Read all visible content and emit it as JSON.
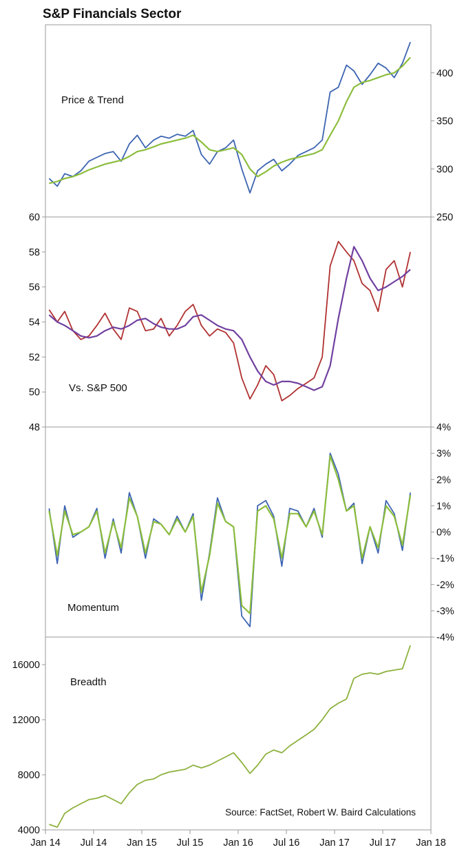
{
  "title": "S&P Financials Sector",
  "source": "Source: FactSet, Robert W. Baird Calculations",
  "colors": {
    "price": "#3c64b1",
    "price_trend": "#8cbd3c",
    "rel": "#b03030",
    "rel_trend": "#7040a0",
    "mom": "#3c64b1",
    "mom_trend": "#8cbd3c",
    "breadth": "#8cb13c",
    "frame": "#999999"
  },
  "x_axis": {
    "ticks": [
      "Jan 14",
      "Jul 14",
      "Jan 15",
      "Jul 15",
      "Jan 16",
      "Jul 16",
      "Jan 17",
      "Jul 17",
      "Jan 18"
    ],
    "range": [
      "2014-01-01",
      "2018-01-01"
    ]
  },
  "chart_data": [
    {
      "type": "line",
      "label": "Price & Trend",
      "y_axis_side": "right",
      "ylim": [
        250,
        450
      ],
      "yticks": [
        "250",
        "300",
        "350",
        "400"
      ],
      "x": [
        "2014-01",
        "2014-02",
        "2014-03",
        "2014-04",
        "2014-05",
        "2014-06",
        "2014-07",
        "2014-08",
        "2014-09",
        "2014-10",
        "2014-11",
        "2014-12",
        "2015-01",
        "2015-02",
        "2015-03",
        "2015-04",
        "2015-05",
        "2015-06",
        "2015-07",
        "2015-08",
        "2015-09",
        "2015-10",
        "2015-11",
        "2015-12",
        "2016-01",
        "2016-02",
        "2016-03",
        "2016-04",
        "2016-05",
        "2016-06",
        "2016-07",
        "2016-08",
        "2016-09",
        "2016-10",
        "2016-11",
        "2016-12",
        "2017-01",
        "2017-02",
        "2017-03",
        "2017-04",
        "2017-05",
        "2017-06",
        "2017-07",
        "2017-08",
        "2017-09",
        "2017-10"
      ],
      "series": [
        {
          "name": "",
          "role": "price",
          "values": [
            290,
            282,
            295,
            292,
            298,
            308,
            312,
            316,
            318,
            308,
            326,
            335,
            322,
            330,
            334,
            332,
            336,
            334,
            340,
            315,
            305,
            318,
            322,
            330,
            300,
            275,
            298,
            305,
            310,
            298,
            305,
            314,
            318,
            322,
            330,
            380,
            385,
            408,
            402,
            388,
            398,
            410,
            405,
            395,
            410,
            432
          ]
        },
        {
          "name": "",
          "role": "trend",
          "values": [
            285,
            287,
            290,
            292,
            295,
            299,
            302,
            305,
            307,
            309,
            313,
            318,
            320,
            323,
            326,
            328,
            330,
            332,
            335,
            328,
            320,
            318,
            320,
            322,
            315,
            300,
            292,
            297,
            303,
            307,
            310,
            312,
            314,
            316,
            320,
            335,
            350,
            370,
            385,
            390,
            392,
            395,
            398,
            400,
            407,
            416
          ]
        }
      ]
    },
    {
      "type": "line",
      "label": "Vs. S&P 500",
      "y_axis_side": "left",
      "ylim": [
        48,
        60
      ],
      "yticks": [
        "48",
        "50",
        "52",
        "54",
        "56",
        "58",
        "60"
      ],
      "x": [
        "2014-01",
        "2014-02",
        "2014-03",
        "2014-04",
        "2014-05",
        "2014-06",
        "2014-07",
        "2014-08",
        "2014-09",
        "2014-10",
        "2014-11",
        "2014-12",
        "2015-01",
        "2015-02",
        "2015-03",
        "2015-04",
        "2015-05",
        "2015-06",
        "2015-07",
        "2015-08",
        "2015-09",
        "2015-10",
        "2015-11",
        "2015-12",
        "2016-01",
        "2016-02",
        "2016-03",
        "2016-04",
        "2016-05",
        "2016-06",
        "2016-07",
        "2016-08",
        "2016-09",
        "2016-10",
        "2016-11",
        "2016-12",
        "2017-01",
        "2017-02",
        "2017-03",
        "2017-04",
        "2017-05",
        "2017-06",
        "2017-07",
        "2017-08",
        "2017-09",
        "2017-10"
      ],
      "series": [
        {
          "name": "",
          "role": "rel",
          "values": [
            54.7,
            54.0,
            54.6,
            53.5,
            53.0,
            53.2,
            53.8,
            54.5,
            53.6,
            53.0,
            54.8,
            54.6,
            53.5,
            53.6,
            54.2,
            53.2,
            53.8,
            54.6,
            55.0,
            53.8,
            53.2,
            53.6,
            53.4,
            52.8,
            50.8,
            49.6,
            50.4,
            51.5,
            51.0,
            49.5,
            49.8,
            50.2,
            50.5,
            50.8,
            52.0,
            57.2,
            58.6,
            58.0,
            57.5,
            56.2,
            55.8,
            54.6,
            57.0,
            57.5,
            56.0,
            58.0
          ]
        },
        {
          "name": "",
          "role": "trend",
          "values": [
            54.4,
            54.0,
            53.8,
            53.5,
            53.2,
            53.1,
            53.2,
            53.5,
            53.7,
            53.6,
            53.8,
            54.1,
            54.2,
            53.9,
            53.7,
            53.6,
            53.6,
            53.8,
            54.3,
            54.4,
            54.1,
            53.8,
            53.6,
            53.5,
            53.0,
            52.0,
            51.2,
            50.6,
            50.4,
            50.6,
            50.6,
            50.5,
            50.3,
            50.1,
            50.3,
            51.5,
            54.2,
            56.5,
            58.3,
            57.5,
            56.5,
            55.8,
            56.0,
            56.3,
            56.6,
            57.0
          ]
        }
      ]
    },
    {
      "type": "line",
      "label": "Momentum",
      "y_axis_side": "right",
      "ylim": [
        -4,
        4
      ],
      "yticks": [
        "-4%",
        "-3%",
        "-2%",
        "-1%",
        "0%",
        "1%",
        "2%",
        "3%",
        "4%"
      ],
      "x": [
        "2014-01",
        "2014-02",
        "2014-03",
        "2014-04",
        "2014-05",
        "2014-06",
        "2014-07",
        "2014-08",
        "2014-09",
        "2014-10",
        "2014-11",
        "2014-12",
        "2015-01",
        "2015-02",
        "2015-03",
        "2015-04",
        "2015-05",
        "2015-06",
        "2015-07",
        "2015-08",
        "2015-09",
        "2015-10",
        "2015-11",
        "2015-12",
        "2016-01",
        "2016-02",
        "2016-03",
        "2016-04",
        "2016-05",
        "2016-06",
        "2016-07",
        "2016-08",
        "2016-09",
        "2016-10",
        "2016-11",
        "2016-12",
        "2017-01",
        "2017-02",
        "2017-03",
        "2017-04",
        "2017-05",
        "2017-06",
        "2017-07",
        "2017-08",
        "2017-09",
        "2017-10"
      ],
      "series": [
        {
          "name": "",
          "role": "mom",
          "values": [
            0.9,
            -1.2,
            1.0,
            -0.2,
            0.0,
            0.2,
            0.9,
            -1.0,
            0.5,
            -0.8,
            1.5,
            0.6,
            -1.0,
            0.5,
            0.3,
            -0.1,
            0.6,
            0.0,
            0.7,
            -2.6,
            -0.8,
            1.3,
            0.4,
            0.2,
            -3.2,
            -3.6,
            1.0,
            1.2,
            0.6,
            -1.3,
            0.9,
            0.8,
            0.2,
            0.9,
            -0.2,
            3.0,
            2.2,
            0.8,
            1.1,
            -1.2,
            0.2,
            -0.8,
            1.2,
            0.7,
            -0.7,
            1.5
          ]
        },
        {
          "name": "",
          "role": "trend",
          "values": [
            0.8,
            -0.9,
            0.8,
            -0.1,
            0.0,
            0.2,
            0.8,
            -0.8,
            0.4,
            -0.6,
            1.3,
            0.6,
            -0.8,
            0.4,
            0.3,
            -0.1,
            0.5,
            0.0,
            0.6,
            -2.3,
            -0.9,
            1.1,
            0.4,
            0.2,
            -2.8,
            -3.1,
            0.8,
            1.0,
            0.5,
            -1.0,
            0.7,
            0.7,
            0.2,
            0.8,
            -0.1,
            2.9,
            2.0,
            0.8,
            1.0,
            -1.0,
            0.2,
            -0.6,
            1.0,
            0.6,
            -0.5,
            1.4
          ]
        }
      ]
    },
    {
      "type": "line",
      "label": "Breadth",
      "y_axis_side": "left",
      "ylim": [
        4000,
        18000
      ],
      "yticks": [
        "4000",
        "8000",
        "12000",
        "16000"
      ],
      "x": [
        "2014-01",
        "2014-02",
        "2014-03",
        "2014-04",
        "2014-05",
        "2014-06",
        "2014-07",
        "2014-08",
        "2014-09",
        "2014-10",
        "2014-11",
        "2014-12",
        "2015-01",
        "2015-02",
        "2015-03",
        "2015-04",
        "2015-05",
        "2015-06",
        "2015-07",
        "2015-08",
        "2015-09",
        "2015-10",
        "2015-11",
        "2015-12",
        "2016-01",
        "2016-02",
        "2016-03",
        "2016-04",
        "2016-05",
        "2016-06",
        "2016-07",
        "2016-08",
        "2016-09",
        "2016-10",
        "2016-11",
        "2016-12",
        "2017-01",
        "2017-02",
        "2017-03",
        "2017-04",
        "2017-05",
        "2017-06",
        "2017-07",
        "2017-08",
        "2017-09",
        "2017-10"
      ],
      "series": [
        {
          "name": "",
          "role": "breadth",
          "values": [
            4400,
            4200,
            5200,
            5600,
            5900,
            6200,
            6300,
            6500,
            6200,
            5900,
            6700,
            7300,
            7600,
            7700,
            8000,
            8200,
            8300,
            8400,
            8700,
            8500,
            8700,
            9000,
            9300,
            9600,
            8900,
            8100,
            8700,
            9500,
            9800,
            9600,
            10100,
            10500,
            10900,
            11300,
            12000,
            12800,
            13200,
            13500,
            15000,
            15300,
            15400,
            15300,
            15500,
            15600,
            15700,
            17400
          ]
        }
      ]
    }
  ]
}
